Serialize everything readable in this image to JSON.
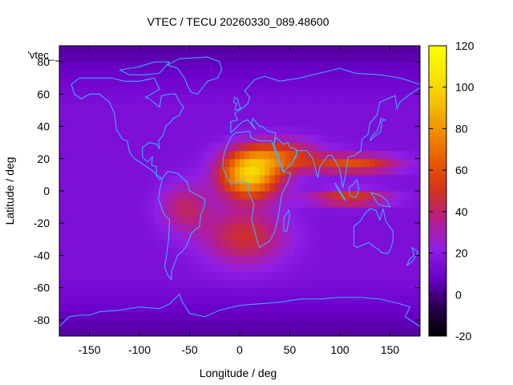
{
  "chart_data": {
    "type": "heatmap",
    "title": "VTEC / TECU 20260330_089.48600",
    "xlabel": "Longitude / deg",
    "ylabel": "Latitude / deg",
    "series_label": "'vtec_",
    "xlim": [
      -180,
      180
    ],
    "ylim": [
      -90,
      90
    ],
    "x_ticks": [
      -150,
      -100,
      -50,
      0,
      50,
      100,
      150
    ],
    "y_ticks": [
      -80,
      -60,
      -40,
      -20,
      0,
      20,
      40,
      60,
      80
    ],
    "colorbar": {
      "range": [
        -20,
        120
      ],
      "ticks": [
        -20,
        0,
        20,
        40,
        60,
        80,
        100,
        120
      ],
      "palette": [
        "#000000",
        "#2a0050",
        "#6a00c8",
        "#8f1ee6",
        "#b41e8c",
        "#d2321e",
        "#e65a00",
        "#f08c00",
        "#f5be00",
        "#f8e600",
        "#fcff00"
      ]
    },
    "background_value": 15,
    "features": [
      {
        "name": "equatorial-anomaly-africa",
        "lon": 10,
        "lat": 10,
        "peak": 95,
        "lon_spread": 30,
        "lat_spread": 14
      },
      {
        "name": "equatorial-band-asia-north",
        "lon": 115,
        "lat": 17,
        "peak": 58,
        "lon_spread": 45,
        "lat_spread": 6
      },
      {
        "name": "equatorial-band-asia-south",
        "lon": 110,
        "lat": -4,
        "peak": 55,
        "lon_spread": 40,
        "lat_spread": 5
      },
      {
        "name": "south-atlantic-plume",
        "lon": 5,
        "lat": -28,
        "peak": 48,
        "lon_spread": 42,
        "lat_spread": 18
      },
      {
        "name": "north-africa-extension",
        "lon": 40,
        "lat": 22,
        "peak": 55,
        "lon_spread": 40,
        "lat_spread": 10
      },
      {
        "name": "south-america-plume",
        "lon": -55,
        "lat": -10,
        "peak": 40,
        "lon_spread": 25,
        "lat_spread": 15
      }
    ],
    "coastlines": [
      {
        "name": "north-america",
        "points": [
          [
            -168,
            66
          ],
          [
            -160,
            70
          ],
          [
            -145,
            70
          ],
          [
            -128,
            70
          ],
          [
            -115,
            68
          ],
          [
            -100,
            68
          ],
          [
            -85,
            70
          ],
          [
            -80,
            63
          ],
          [
            -94,
            58
          ],
          [
            -90,
            57
          ],
          [
            -80,
            52
          ],
          [
            -78,
            59
          ],
          [
            -70,
            60
          ],
          [
            -64,
            60
          ],
          [
            -60,
            55
          ],
          [
            -56,
            52
          ],
          [
            -60,
            47
          ],
          [
            -66,
            45
          ],
          [
            -70,
            42
          ],
          [
            -74,
            40
          ],
          [
            -76,
            35
          ],
          [
            -81,
            31
          ],
          [
            -80,
            26
          ],
          [
            -83,
            29
          ],
          [
            -90,
            30
          ],
          [
            -97,
            27
          ],
          [
            -97,
            21
          ],
          [
            -92,
            18
          ],
          [
            -87,
            21
          ],
          [
            -88,
            16
          ],
          [
            -83,
            15
          ],
          [
            -83,
            10
          ],
          [
            -78,
            8
          ],
          [
            -80,
            7
          ],
          [
            -86,
            12
          ],
          [
            -93,
            15
          ],
          [
            -105,
            20
          ],
          [
            -110,
            24
          ],
          [
            -112,
            31
          ],
          [
            -117,
            32
          ],
          [
            -123,
            38
          ],
          [
            -125,
            48
          ],
          [
            -130,
            55
          ],
          [
            -140,
            60
          ],
          [
            -150,
            60
          ],
          [
            -158,
            57
          ],
          [
            -165,
            60
          ],
          [
            -168,
            66
          ]
        ]
      },
      {
        "name": "south-america",
        "points": [
          [
            -77,
            8
          ],
          [
            -72,
            12
          ],
          [
            -62,
            11
          ],
          [
            -52,
            5
          ],
          [
            -50,
            0
          ],
          [
            -44,
            -2
          ],
          [
            -35,
            -5
          ],
          [
            -35,
            -9
          ],
          [
            -39,
            -15
          ],
          [
            -40,
            -22
          ],
          [
            -48,
            -26
          ],
          [
            -53,
            -34
          ],
          [
            -58,
            -38
          ],
          [
            -62,
            -40
          ],
          [
            -65,
            -45
          ],
          [
            -68,
            -50
          ],
          [
            -68,
            -55
          ],
          [
            -72,
            -52
          ],
          [
            -75,
            -47
          ],
          [
            -73,
            -40
          ],
          [
            -71,
            -30
          ],
          [
            -70,
            -18
          ],
          [
            -76,
            -14
          ],
          [
            -81,
            -5
          ],
          [
            -80,
            0
          ],
          [
            -77,
            8
          ]
        ]
      },
      {
        "name": "africa",
        "points": [
          [
            -17,
            15
          ],
          [
            -16,
            22
          ],
          [
            -13,
            28
          ],
          [
            -9,
            33
          ],
          [
            -5,
            36
          ],
          [
            10,
            37
          ],
          [
            11,
            33
          ],
          [
            20,
            31
          ],
          [
            32,
            31
          ],
          [
            34,
            27
          ],
          [
            38,
            20
          ],
          [
            43,
            12
          ],
          [
            51,
            11
          ],
          [
            48,
            5
          ],
          [
            42,
            -2
          ],
          [
            40,
            -10
          ],
          [
            38,
            -18
          ],
          [
            35,
            -25
          ],
          [
            30,
            -31
          ],
          [
            20,
            -35
          ],
          [
            18,
            -32
          ],
          [
            12,
            -18
          ],
          [
            14,
            -8
          ],
          [
            9,
            -1
          ],
          [
            9,
            4
          ],
          [
            4,
            6
          ],
          [
            -4,
            5
          ],
          [
            -8,
            4
          ],
          [
            -14,
            10
          ],
          [
            -17,
            15
          ]
        ]
      },
      {
        "name": "madagascar",
        "points": [
          [
            44,
            -25
          ],
          [
            47,
            -25
          ],
          [
            50,
            -15
          ],
          [
            49,
            -12
          ],
          [
            44,
            -17
          ],
          [
            44,
            -25
          ]
        ]
      },
      {
        "name": "eurasia",
        "points": [
          [
            -9,
            36
          ],
          [
            -9,
            43
          ],
          [
            -2,
            44
          ],
          [
            -5,
            48
          ],
          [
            2,
            51
          ],
          [
            8,
            54
          ],
          [
            10,
            58
          ],
          [
            5,
            62
          ],
          [
            15,
            69
          ],
          [
            25,
            71
          ],
          [
            40,
            68
          ],
          [
            60,
            70
          ],
          [
            80,
            73
          ],
          [
            100,
            76
          ],
          [
            115,
            73
          ],
          [
            140,
            72
          ],
          [
            160,
            70
          ],
          [
            170,
            68
          ],
          [
            180,
            66
          ]
        ]
      },
      {
        "name": "east-asia-coast",
        "points": [
          [
            180,
            64
          ],
          [
            170,
            60
          ],
          [
            160,
            55
          ],
          [
            157,
            51
          ],
          [
            155,
            59
          ],
          [
            140,
            55
          ],
          [
            137,
            47
          ],
          [
            130,
            42
          ],
          [
            128,
            35
          ],
          [
            122,
            32
          ],
          [
            121,
            25
          ],
          [
            115,
            22
          ],
          [
            108,
            21
          ],
          [
            106,
            11
          ],
          [
            103,
            2
          ],
          [
            100,
            13
          ],
          [
            97,
            17
          ],
          [
            92,
            22
          ],
          [
            88,
            22
          ],
          [
            80,
            15
          ],
          [
            78,
            8
          ],
          [
            73,
            20
          ],
          [
            67,
            25
          ],
          [
            57,
            25
          ],
          [
            56,
            22
          ],
          [
            52,
            17
          ],
          [
            44,
            12
          ],
          [
            38,
            22
          ],
          [
            34,
            29
          ],
          [
            36,
            36
          ],
          [
            28,
            37
          ],
          [
            23,
            40
          ],
          [
            20,
            40
          ],
          [
            13,
            45
          ],
          [
            12,
            42
          ],
          [
            16,
            38
          ],
          [
            8,
            44
          ],
          [
            3,
            43
          ],
          [
            -9,
            36
          ]
        ]
      },
      {
        "name": "arabia",
        "points": [
          [
            34,
            29
          ],
          [
            38,
            22
          ],
          [
            44,
            12
          ],
          [
            52,
            17
          ],
          [
            57,
            22
          ],
          [
            56,
            26
          ],
          [
            50,
            27
          ],
          [
            48,
            30
          ],
          [
            44,
            29
          ],
          [
            36,
            33
          ],
          [
            34,
            29
          ]
        ]
      },
      {
        "name": "australia",
        "points": [
          [
            114,
            -22
          ],
          [
            114,
            -34
          ],
          [
            117,
            -35
          ],
          [
            129,
            -32
          ],
          [
            135,
            -35
          ],
          [
            138,
            -36
          ],
          [
            141,
            -38
          ],
          [
            147,
            -39
          ],
          [
            150,
            -37
          ],
          [
            153,
            -31
          ],
          [
            153,
            -25
          ],
          [
            146,
            -19
          ],
          [
            143,
            -11
          ],
          [
            140,
            -18
          ],
          [
            136,
            -12
          ],
          [
            130,
            -11
          ],
          [
            125,
            -14
          ],
          [
            120,
            -19
          ],
          [
            114,
            -22
          ]
        ]
      },
      {
        "name": "greenland",
        "points": [
          [
            -72,
            78
          ],
          [
            -60,
            82
          ],
          [
            -32,
            83
          ],
          [
            -20,
            80
          ],
          [
            -18,
            75
          ],
          [
            -22,
            70
          ],
          [
            -32,
            68
          ],
          [
            -42,
            60
          ],
          [
            -48,
            61
          ],
          [
            -52,
            65
          ],
          [
            -55,
            70
          ],
          [
            -62,
            76
          ],
          [
            -72,
            78
          ]
        ]
      },
      {
        "name": "british-isles",
        "points": [
          [
            -5,
            50
          ],
          [
            1,
            51
          ],
          [
            -1,
            54
          ],
          [
            -2,
            57
          ],
          [
            -5,
            58
          ],
          [
            -6,
            55
          ],
          [
            -3,
            54
          ],
          [
            -5,
            50
          ]
        ]
      },
      {
        "name": "japan",
        "points": [
          [
            130,
            31
          ],
          [
            135,
            34
          ],
          [
            140,
            36
          ],
          [
            142,
            41
          ],
          [
            141,
            43
          ],
          [
            145,
            44
          ],
          [
            141,
            45
          ],
          [
            139,
            40
          ],
          [
            137,
            37
          ],
          [
            132,
            34
          ],
          [
            130,
            31
          ]
        ]
      },
      {
        "name": "borneo",
        "points": [
          [
            109,
            2
          ],
          [
            110,
            -3
          ],
          [
            116,
            -4
          ],
          [
            119,
            1
          ],
          [
            117,
            7
          ],
          [
            113,
            4
          ],
          [
            109,
            2
          ]
        ]
      },
      {
        "name": "sumatra",
        "points": [
          [
            95,
            5
          ],
          [
            106,
            -6
          ],
          [
            104,
            -5
          ],
          [
            98,
            1
          ],
          [
            95,
            5
          ]
        ]
      },
      {
        "name": "new-guinea",
        "points": [
          [
            131,
            -1
          ],
          [
            141,
            -3
          ],
          [
            147,
            -6
          ],
          [
            150,
            -10
          ],
          [
            141,
            -9
          ],
          [
            138,
            -8
          ],
          [
            131,
            -1
          ]
        ]
      },
      {
        "name": "new-zealand",
        "points": [
          [
            172,
            -35
          ],
          [
            178,
            -38
          ],
          [
            175,
            -41
          ],
          [
            172,
            -44
          ],
          [
            167,
            -46
          ],
          [
            170,
            -42
          ],
          [
            174,
            -40
          ],
          [
            172,
            -35
          ]
        ]
      },
      {
        "name": "antarctica",
        "points": [
          [
            -180,
            -84
          ],
          [
            -170,
            -78
          ],
          [
            -160,
            -77
          ],
          [
            -150,
            -77
          ],
          [
            -140,
            -75
          ],
          [
            -120,
            -74
          ],
          [
            -100,
            -72
          ],
          [
            -80,
            -73
          ],
          [
            -70,
            -70
          ],
          [
            -60,
            -64
          ],
          [
            -58,
            -68
          ],
          [
            -50,
            -76
          ],
          [
            -35,
            -78
          ],
          [
            -20,
            -74
          ],
          [
            0,
            -71
          ],
          [
            20,
            -70
          ],
          [
            40,
            -69
          ],
          [
            60,
            -67
          ],
          [
            80,
            -67
          ],
          [
            100,
            -66
          ],
          [
            120,
            -66
          ],
          [
            140,
            -67
          ],
          [
            160,
            -70
          ],
          [
            170,
            -72
          ],
          [
            165,
            -78
          ],
          [
            180,
            -84
          ]
        ]
      },
      {
        "name": "canadian-archipelago",
        "points": [
          [
            -120,
            75
          ],
          [
            -100,
            77
          ],
          [
            -85,
            80
          ],
          [
            -70,
            80
          ],
          [
            -80,
            73
          ],
          [
            -95,
            72
          ],
          [
            -110,
            72
          ],
          [
            -120,
            75
          ]
        ]
      }
    ]
  }
}
